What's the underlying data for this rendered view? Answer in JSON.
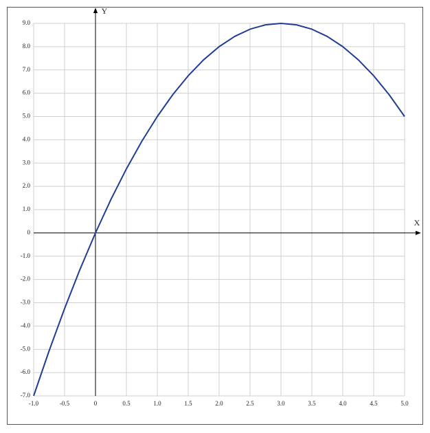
{
  "chart_data": {
    "type": "line",
    "x_label": "X",
    "y_label": "Y",
    "x": [
      -1,
      -0.75,
      -0.5,
      -0.25,
      0,
      0.25,
      0.5,
      0.75,
      1,
      1.25,
      1.5,
      1.75,
      2,
      2.25,
      2.5,
      2.75,
      3,
      3.25,
      3.5,
      3.75,
      4,
      4.25,
      4.5,
      4.75,
      5
    ],
    "values": [
      -7,
      -5.0625,
      -3.25,
      -1.5625,
      0,
      1.4375,
      2.75,
      3.9375,
      5,
      5.9375,
      6.75,
      7.4375,
      8,
      8.4375,
      8.75,
      8.9375,
      9,
      8.9375,
      8.75,
      8.4375,
      8,
      7.4375,
      6.75,
      5.9375,
      5
    ],
    "color": "#1f3c96",
    "xlim": [
      -1,
      5
    ],
    "ylim": [
      -7,
      9
    ],
    "xticks": [
      {
        "value": -1,
        "label": "-1.0"
      },
      -0.5,
      0,
      0.5,
      {
        "value": 1,
        "label": "1.0"
      },
      1.5,
      {
        "value": 2,
        "label": "2.0"
      },
      2.5,
      {
        "value": 3,
        "label": "3.0"
      },
      3.5,
      {
        "value": 4,
        "label": "4.0"
      },
      4.5,
      {
        "value": 5,
        "label": "5.0"
      }
    ],
    "yticks": [
      {
        "value": -7,
        "label": "-7.0"
      },
      {
        "value": -6,
        "label": "-6.0"
      },
      {
        "value": -5,
        "label": "-5.0"
      },
      {
        "value": -4,
        "label": "-4.0"
      },
      {
        "value": -3,
        "label": "-3.0"
      },
      {
        "value": -2,
        "label": "-2.0"
      },
      {
        "value": -1,
        "label": "-1.0"
      },
      0,
      {
        "value": 1,
        "label": "1.0"
      },
      {
        "value": 2,
        "label": "2.0"
      },
      {
        "value": 3,
        "label": "3.0"
      },
      {
        "value": 4,
        "label": "4.0"
      },
      {
        "value": 5,
        "label": "5.0"
      },
      {
        "value": 6,
        "label": "6.0"
      },
      {
        "value": 7,
        "label": "7.0"
      },
      {
        "value": 8,
        "label": "8.0"
      },
      {
        "value": 9,
        "label": "9.0"
      }
    ],
    "grid": true
  }
}
